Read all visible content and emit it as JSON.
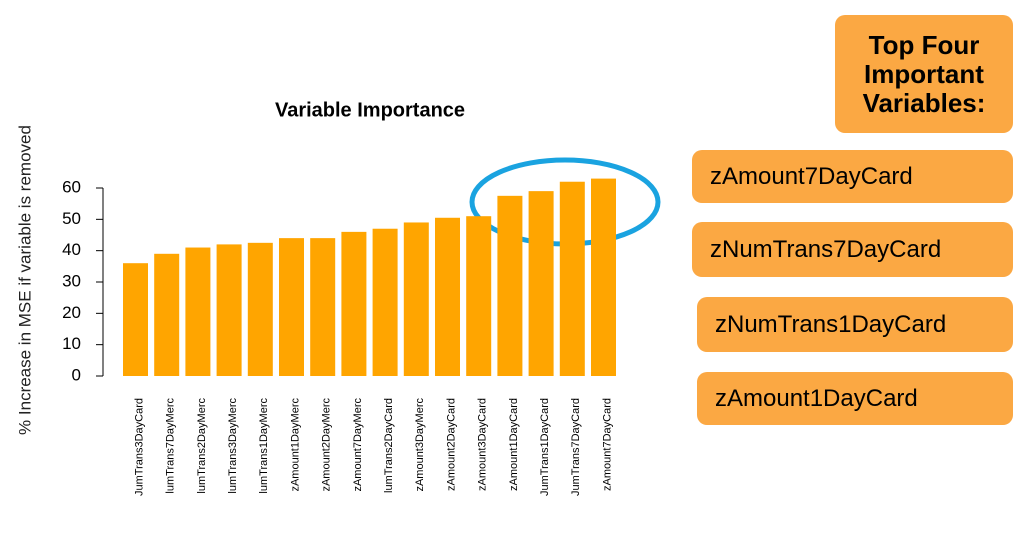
{
  "chart_data": {
    "type": "bar",
    "title": "Variable Importance",
    "y_label": "% Increase in MSE if variable is removed",
    "categories": [
      "JumTrans3DayCard",
      "lumTrans7DayMerc",
      "lumTrans2DayMerc",
      "lumTrans3DayMerc",
      "lumTrans1DayMerc",
      "zAmount1DayMerc",
      "zAmount2DayMerc",
      "zAmount7DayMerc",
      "lumTrans2DayCard",
      "zAmount3DayMerc",
      "zAmount2DayCard",
      "zAmount3DayCard",
      "zAmount1DayCard",
      "JumTrans1DayCard",
      "JumTrans7DayCard",
      "zAmount7DayCard"
    ],
    "values": [
      36,
      39,
      41,
      42,
      42.5,
      44,
      44,
      46,
      47,
      49,
      50.5,
      51,
      57.5,
      59,
      62,
      63
    ],
    "color": "#ffa500",
    "ylim": [
      0,
      60
    ],
    "yticks": [
      0,
      10,
      20,
      30,
      40,
      50,
      60
    ]
  },
  "panel": {
    "title": "Top Four Important Variables:",
    "items": [
      "zAmount7DayCard",
      "zNumTrans7DayCard",
      "zNumTrans1DayCard",
      "zAmount1DayCard"
    ]
  }
}
